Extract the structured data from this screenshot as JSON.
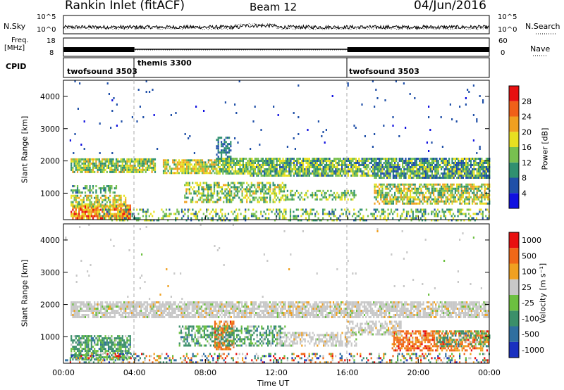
{
  "header": {
    "title": "Rankin Inlet (fitACF)",
    "beam": "Beam 12",
    "date": "04/Jun/2016"
  },
  "top_panels": {
    "nsky_label": "N.Sky",
    "nsearch_label": "N.Search",
    "noise_ticks_left": [
      "10^5",
      "10^0"
    ],
    "noise_ticks_right": [
      "10^5",
      "10^0"
    ],
    "freq_label": "Freq.",
    "freq_unit": "[MHz]",
    "freq_ticks": [
      "18",
      "8"
    ],
    "nave_label": "Nave",
    "nave_ticks": [
      "60",
      "0"
    ],
    "cpid_label": "CPID",
    "cpid_segments": [
      {
        "name": "twofsound 3503",
        "start": 0,
        "end": 4
      },
      {
        "name": "themis 3300",
        "start": 4,
        "end": 16
      },
      {
        "name": "twofsound 3503",
        "start": 16,
        "end": 24
      }
    ]
  },
  "chart_data": [
    {
      "type": "heatmap",
      "panel": "power",
      "ylabel": "Slant Range [km]",
      "xlabel": "Time UT",
      "x_range_hours": [
        0,
        24
      ],
      "y_range_km": [
        180,
        4500
      ],
      "y_ticks": [
        "1000",
        "2000",
        "3000",
        "4000"
      ],
      "colorbar_label": "Power [dB]",
      "colorbar_ticks": [
        "4",
        "8",
        "12",
        "16",
        "20",
        "24",
        "28"
      ],
      "colorbar_colors": [
        "#1010e0",
        "#2050a8",
        "#309070",
        "#78c050",
        "#e8e020",
        "#f0a020",
        "#f06018",
        "#e81010"
      ],
      "scatter_bands": [
        {
          "t0": 0.4,
          "t1": 5.2,
          "r0": 1680,
          "r1": 2080,
          "lo": 8,
          "hi": 22,
          "d": 0.85
        },
        {
          "t0": 0.4,
          "t1": 3.8,
          "r0": 250,
          "r1": 650,
          "lo": 16,
          "hi": 30,
          "d": 0.8
        },
        {
          "t0": 0.4,
          "t1": 3.5,
          "r0": 600,
          "r1": 950,
          "lo": 10,
          "hi": 22,
          "d": 0.7
        },
        {
          "t0": 0.4,
          "t1": 3.0,
          "r0": 1000,
          "r1": 1250,
          "lo": 6,
          "hi": 16,
          "d": 0.5
        },
        {
          "t0": 5.6,
          "t1": 8.6,
          "r0": 1650,
          "r1": 2050,
          "lo": 10,
          "hi": 24,
          "d": 0.8
        },
        {
          "t0": 8.6,
          "t1": 10.5,
          "r0": 1600,
          "r1": 2100,
          "lo": 8,
          "hi": 20,
          "d": 0.85
        },
        {
          "t0": 8.6,
          "t1": 9.4,
          "r0": 2050,
          "r1": 2750,
          "lo": 4,
          "hi": 12,
          "d": 0.55
        },
        {
          "t0": 10.5,
          "t1": 17.5,
          "r0": 1550,
          "r1": 2100,
          "lo": 6,
          "hi": 20,
          "d": 0.85
        },
        {
          "t0": 17.5,
          "t1": 24.0,
          "r0": 1450,
          "r1": 2100,
          "lo": 4,
          "hi": 18,
          "d": 0.85
        },
        {
          "t0": 6.8,
          "t1": 12.5,
          "r0": 750,
          "r1": 1350,
          "lo": 8,
          "hi": 22,
          "d": 0.55
        },
        {
          "t0": 12.5,
          "t1": 16.5,
          "r0": 780,
          "r1": 1100,
          "lo": 8,
          "hi": 18,
          "d": 0.5
        },
        {
          "t0": 17.5,
          "t1": 24.0,
          "r0": 650,
          "r1": 1300,
          "lo": 8,
          "hi": 24,
          "d": 0.7
        },
        {
          "t0": 2.0,
          "t1": 24.0,
          "r0": 180,
          "r1": 520,
          "lo": 6,
          "hi": 20,
          "d": 0.35
        },
        {
          "t0": 0.0,
          "t1": 24.0,
          "r0": 2200,
          "r1": 4500,
          "lo": 3,
          "hi": 8,
          "d": 0.012
        }
      ]
    },
    {
      "type": "heatmap",
      "panel": "velocity",
      "ylabel": "Slant Range [km]",
      "xlabel": "Time UT",
      "x_range_hours": [
        0,
        24
      ],
      "y_range_km": [
        180,
        4500
      ],
      "y_ticks": [
        "1000",
        "2000",
        "3000",
        "4000"
      ],
      "x_ticks": [
        "00:00",
        "04:00",
        "08:00",
        "12:00",
        "16:00",
        "20:00",
        "00:00"
      ],
      "colorbar_label": "Velocity [m s⁻¹]",
      "colorbar_ticks": [
        "1000",
        "500",
        "100",
        "25",
        "-25",
        "-100",
        "-500",
        "-1000"
      ],
      "colorbar_colors": [
        "#1a30c0",
        "#2f6fa0",
        "#3b8f6a",
        "#6cc040",
        "#c8c8c8",
        "#f0a020",
        "#f06818",
        "#e81010"
      ],
      "scatter_bands": [
        {
          "t0": 0.4,
          "t1": 24.0,
          "r0": 1620,
          "r1": 2100,
          "mode": "gray",
          "d": 0.8
        },
        {
          "t0": 0.4,
          "t1": 3.8,
          "r0": 280,
          "r1": 1050,
          "mode": "green",
          "d": 0.7
        },
        {
          "t0": 8.5,
          "t1": 9.6,
          "r0": 600,
          "r1": 1500,
          "mode": "orange",
          "d": 0.75
        },
        {
          "t0": 6.5,
          "t1": 12.5,
          "r0": 750,
          "r1": 1350,
          "mode": "green",
          "d": 0.5
        },
        {
          "t0": 12.0,
          "t1": 16.5,
          "r0": 700,
          "r1": 1150,
          "mode": "gray",
          "d": 0.55
        },
        {
          "t0": 18.5,
          "t1": 24.0,
          "r0": 550,
          "r1": 1200,
          "mode": "orange",
          "d": 0.65
        },
        {
          "t0": 21.0,
          "t1": 24.0,
          "r0": 700,
          "r1": 1200,
          "mode": "green",
          "d": 0.45
        },
        {
          "t0": 16.0,
          "t1": 19.0,
          "r0": 1100,
          "r1": 1500,
          "mode": "gray",
          "d": 0.55
        },
        {
          "t0": 0.0,
          "t1": 24.0,
          "r0": 180,
          "r1": 500,
          "mode": "mixed",
          "d": 0.3
        },
        {
          "t0": 0.0,
          "t1": 24.0,
          "r0": 2200,
          "r1": 4500,
          "mode": "gray",
          "d": 0.008
        }
      ]
    }
  ]
}
